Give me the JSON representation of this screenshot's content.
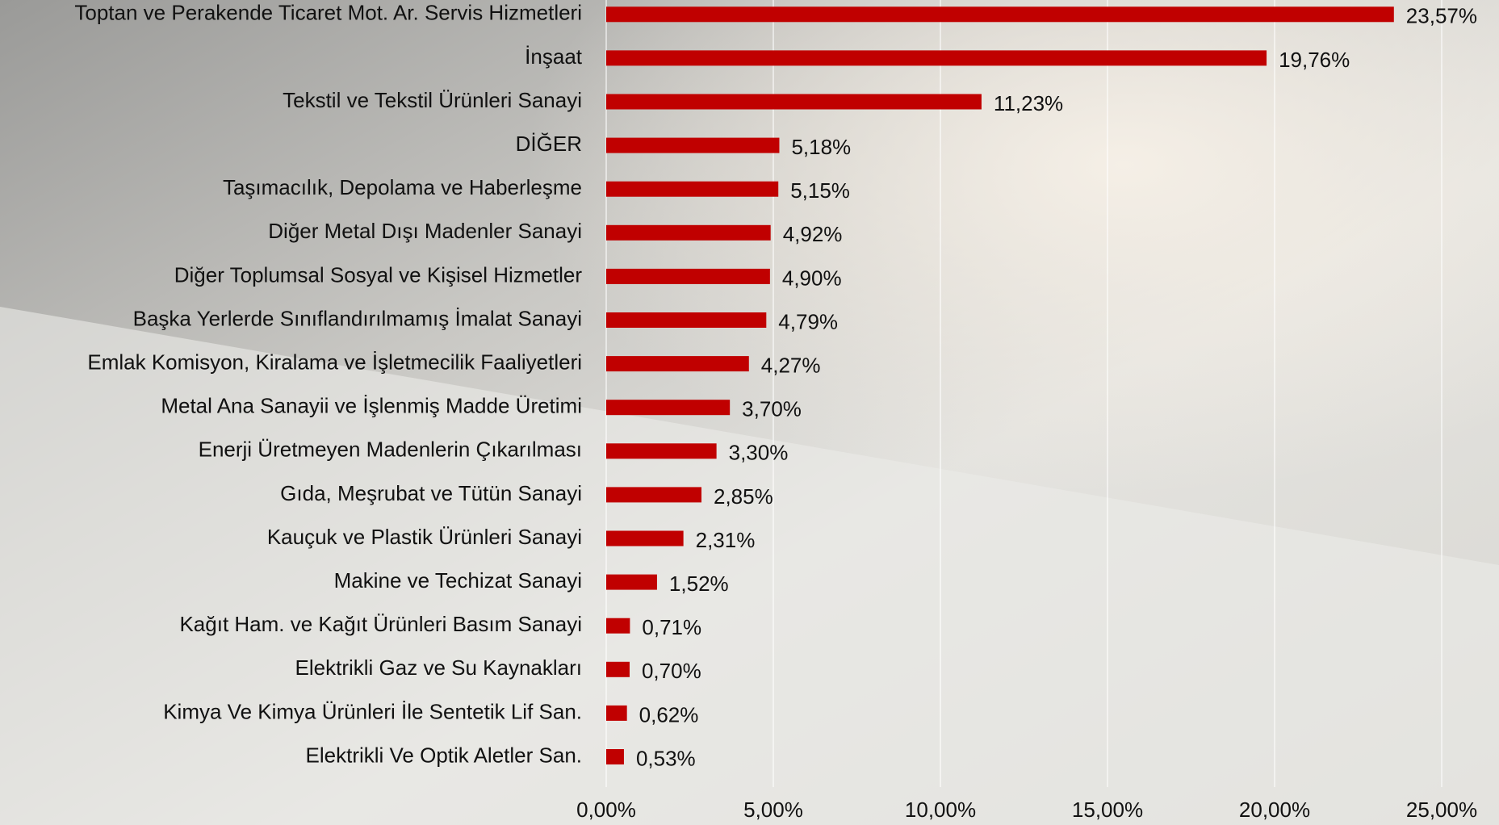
{
  "chart_data": {
    "type": "bar",
    "orientation": "horizontal",
    "categories": [
      "Toptan ve Perakende Ticaret Mot. Ar. Servis Hizmetleri",
      "İnşaat",
      "Tekstil ve Tekstil Ürünleri Sanayi",
      "DİĞER",
      "Taşımacılık, Depolama ve Haberleşme",
      "Diğer Metal Dışı Madenler Sanayi",
      "Diğer Toplumsal Sosyal ve Kişisel Hizmetler",
      "Başka Yerlerde Sınıflandırılmamış İmalat Sanayi",
      "Emlak Komisyon, Kiralama ve İşletmecilik Faaliyetleri",
      "Metal Ana Sanayii ve İşlenmiş Madde Üretimi",
      "Enerji Üretmeyen Madenlerin Çıkarılması",
      "Gıda, Meşrubat ve Tütün Sanayi",
      "Kauçuk ve Plastik Ürünleri Sanayi",
      "Makine ve Techizat Sanayi",
      "Kağıt Ham. ve Kağıt Ürünleri Basım Sanayi",
      "Elektrikli Gaz ve Su Kaynakları",
      "Kimya Ve Kimya Ürünleri İle Sentetik Lif San.",
      "Elektrikli Ve Optik Aletler San."
    ],
    "values": [
      23.57,
      19.76,
      11.23,
      5.18,
      5.15,
      4.92,
      4.9,
      4.79,
      4.27,
      3.7,
      3.3,
      2.85,
      2.31,
      1.52,
      0.71,
      0.7,
      0.62,
      0.53
    ],
    "value_labels": [
      "23,57%",
      "19,76%",
      "11,23%",
      "5,18%",
      "5,15%",
      "4,92%",
      "4,90%",
      "4,79%",
      "4,27%",
      "3,70%",
      "3,30%",
      "2,85%",
      "2,31%",
      "1,52%",
      "0,71%",
      "0,70%",
      "0,62%",
      "0,53%"
    ],
    "color": "#c00000",
    "xlim": [
      0,
      25
    ],
    "xticks": [
      {
        "value": 0,
        "label": "0,00%"
      },
      {
        "value": 5,
        "label": "5,00%"
      },
      {
        "value": 10,
        "label": "10,00%"
      },
      {
        "value": 15,
        "label": "15,00%"
      },
      {
        "value": 20,
        "label": "20,00%"
      },
      {
        "value": 25,
        "label": "25,00%"
      }
    ],
    "grid": true
  }
}
